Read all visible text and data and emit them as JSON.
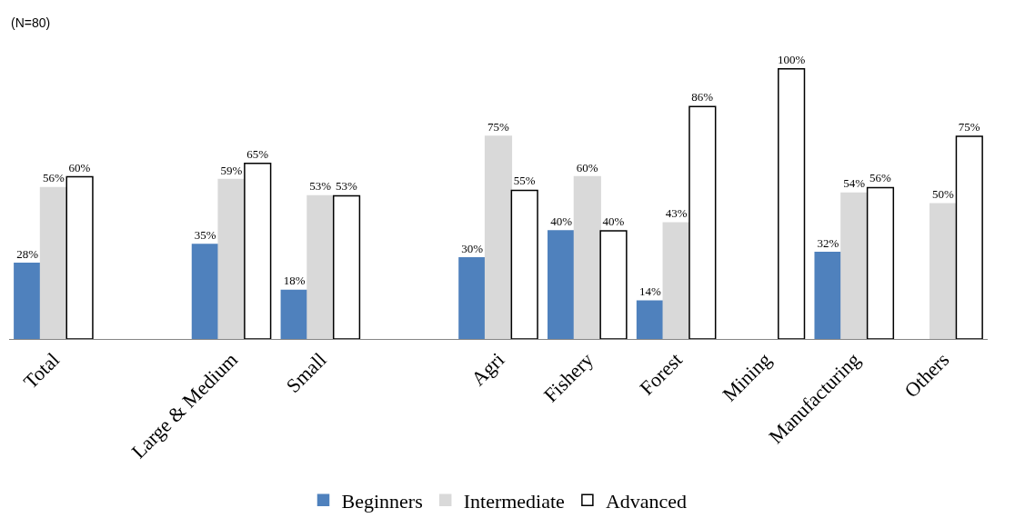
{
  "chart_data": {
    "type": "bar",
    "categories": [
      "Total",
      null,
      "Large & Medium",
      "Small",
      null,
      "Agri",
      "Fishery",
      "Forest",
      "Mining",
      "Manufacturing",
      "Others"
    ],
    "series": [
      {
        "name": "Beginners",
        "color": "#4f81bd",
        "values": [
          28,
          null,
          35,
          18,
          null,
          30,
          40,
          14,
          null,
          32,
          null
        ],
        "value_labels": [
          "28%",
          null,
          "35%",
          "18%",
          null,
          "30%",
          "40%",
          "14%",
          null,
          "32%",
          null
        ]
      },
      {
        "name": "Intermediate",
        "color": "#d9d9d9",
        "values": [
          56,
          null,
          59,
          53,
          null,
          75,
          60,
          43,
          null,
          54,
          50
        ],
        "value_labels": [
          "56%",
          null,
          "59%",
          "53%",
          null,
          "75%",
          "60%",
          "43%",
          null,
          "54%",
          "50%"
        ]
      },
      {
        "name": "Advanced",
        "color": "#ffffff",
        "values": [
          60,
          null,
          65,
          53,
          null,
          55,
          40,
          86,
          100,
          56,
          75
        ],
        "value_labels": [
          "60%",
          null,
          "65%",
          "53%",
          null,
          "55%",
          "40%",
          "86%",
          "100%",
          "56%",
          "75%"
        ]
      }
    ],
    "tick_labels": "x",
    "legend": "bottom",
    "annotations": [
      "(N=80)"
    ]
  }
}
